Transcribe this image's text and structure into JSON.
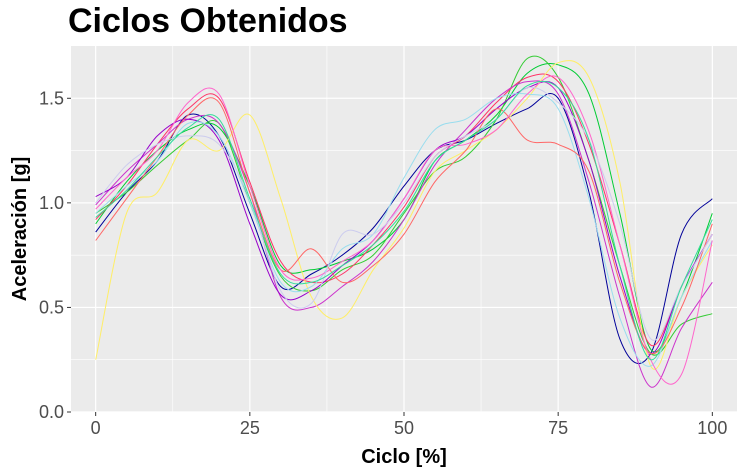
{
  "chart_data": {
    "type": "line",
    "title": "Ciclos Obtenidos",
    "xlabel": "Ciclo [%]",
    "ylabel": "Aceleración [g]",
    "xlim": [
      -4,
      104
    ],
    "ylim": [
      0,
      1.75
    ],
    "xticks": [
      0,
      25,
      50,
      75,
      100
    ],
    "xtick_labels": [
      "0",
      "25",
      "50",
      "75",
      "100"
    ],
    "yticks": [
      0,
      0.5,
      1.0,
      1.5
    ],
    "ytick_labels": [
      "0.0",
      "0.5",
      "1.0",
      "1.5"
    ],
    "grid": true,
    "legend": "none",
    "background": "#ebebeb",
    "x": [
      0,
      5,
      10,
      15,
      20,
      25,
      30,
      35,
      40,
      45,
      50,
      55,
      60,
      65,
      70,
      75,
      80,
      85,
      90,
      95,
      100
    ],
    "series": [
      {
        "color": "#000099",
        "values": [
          0.86,
          1.05,
          1.2,
          1.42,
          1.32,
          0.95,
          0.6,
          0.66,
          0.75,
          0.88,
          1.08,
          1.25,
          1.3,
          1.38,
          1.45,
          1.5,
          1.05,
          0.35,
          0.28,
          0.85,
          1.02
        ]
      },
      {
        "color": "#00cc33",
        "values": [
          0.9,
          1.1,
          1.25,
          1.35,
          1.36,
          1.08,
          0.7,
          0.68,
          0.72,
          0.78,
          0.92,
          1.2,
          1.3,
          1.42,
          1.62,
          1.66,
          1.52,
          0.95,
          0.3,
          0.55,
          0.95
        ]
      },
      {
        "color": "#33cc33",
        "values": [
          0.95,
          1.05,
          1.18,
          1.3,
          1.38,
          1.0,
          0.65,
          0.58,
          0.68,
          0.75,
          0.95,
          1.15,
          1.22,
          1.4,
          1.69,
          1.6,
          1.2,
          0.7,
          0.28,
          0.42,
          0.47
        ]
      },
      {
        "color": "#ff3366",
        "values": [
          0.92,
          1.08,
          1.28,
          1.45,
          1.5,
          1.1,
          0.72,
          0.62,
          0.66,
          0.8,
          0.98,
          1.22,
          1.32,
          1.48,
          1.6,
          1.58,
          1.28,
          0.8,
          0.32,
          0.6,
          0.85
        ]
      },
      {
        "color": "#cc33cc",
        "values": [
          0.99,
          1.15,
          1.28,
          1.4,
          1.38,
          1.05,
          0.55,
          0.5,
          0.6,
          0.72,
          0.92,
          1.18,
          1.35,
          1.5,
          1.58,
          1.52,
          1.1,
          0.55,
          0.12,
          0.4,
          0.62
        ]
      },
      {
        "color": "#9900cc",
        "values": [
          1.03,
          1.12,
          1.32,
          1.4,
          1.3,
          0.9,
          0.56,
          0.58,
          0.7,
          0.82,
          1.02,
          1.25,
          1.32,
          1.45,
          1.55,
          1.55,
          1.2,
          0.65,
          0.28,
          0.6,
          0.85
        ]
      },
      {
        "color": "#ffee66",
        "values": [
          0.25,
          0.95,
          1.05,
          1.3,
          1.25,
          1.42,
          1.02,
          0.55,
          0.45,
          0.68,
          0.88,
          1.15,
          1.25,
          1.35,
          1.5,
          1.67,
          1.6,
          1.1,
          0.22,
          0.55,
          0.8
        ]
      },
      {
        "color": "#99ddee",
        "values": [
          0.95,
          1.08,
          1.2,
          1.38,
          1.32,
          1.0,
          0.62,
          0.6,
          0.78,
          0.85,
          1.12,
          1.35,
          1.4,
          1.5,
          1.52,
          1.45,
          1.02,
          0.45,
          0.22,
          0.55,
          0.82
        ]
      },
      {
        "color": "#ff6666",
        "values": [
          0.82,
          1.02,
          1.22,
          1.42,
          1.48,
          1.05,
          0.68,
          0.78,
          0.62,
          0.7,
          0.85,
          1.1,
          1.25,
          1.45,
          1.3,
          1.28,
          1.15,
          0.62,
          0.28,
          0.5,
          0.9
        ]
      },
      {
        "color": "#ff66cc",
        "values": [
          0.97,
          1.12,
          1.25,
          1.48,
          1.52,
          1.08,
          0.68,
          0.64,
          0.72,
          0.82,
          1.02,
          1.25,
          1.28,
          1.35,
          1.52,
          1.6,
          1.34,
          0.8,
          0.25,
          0.18,
          0.82
        ]
      },
      {
        "color": "#ccccee",
        "values": [
          1.0,
          1.18,
          1.28,
          1.32,
          1.28,
          1.02,
          0.58,
          0.52,
          0.85,
          0.85,
          1.0,
          1.22,
          1.32,
          1.4,
          1.55,
          1.48,
          1.3,
          0.9,
          0.35,
          0.6,
          0.85
        ]
      },
      {
        "color": "#33dd99",
        "values": [
          0.93,
          1.06,
          1.22,
          1.36,
          1.4,
          1.02,
          0.66,
          0.62,
          0.7,
          0.8,
          0.96,
          1.2,
          1.3,
          1.4,
          1.56,
          1.55,
          1.3,
          0.7,
          0.25,
          0.6,
          0.92
        ]
      }
    ]
  }
}
